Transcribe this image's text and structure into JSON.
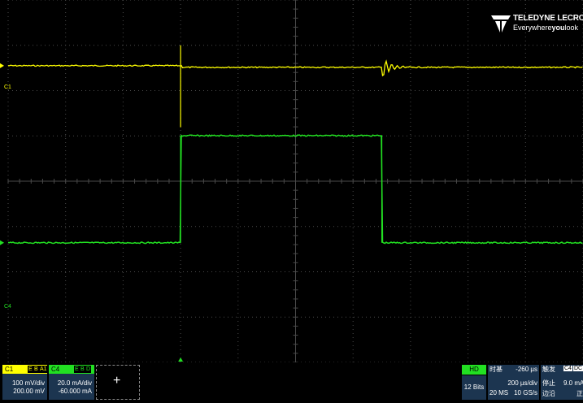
{
  "brand": {
    "name": "TELEDYNE LECROY",
    "tagline_pre": "Everywhere",
    "tagline_bold": "you",
    "tagline_post": "look"
  },
  "colors": {
    "ch1": "#ffff00",
    "ch4": "#22e022",
    "grid": "#4a4a4a",
    "panel": "#1c3550"
  },
  "trace_labels": {
    "ch1": "C1",
    "ch4": "C4"
  },
  "ch1": {
    "label": "C1",
    "badges": [
      "E",
      "B",
      "A1"
    ],
    "scale": "100 mV/div",
    "offset": "200.00 mV"
  },
  "ch4": {
    "label": "C4",
    "badges": [
      "E",
      "B",
      "D"
    ],
    "scale": "20.0 mA/div",
    "offset": "-60.000 mA"
  },
  "add_channel": {
    "symbol": "+"
  },
  "timebase": {
    "hd": "HD",
    "bits": "12 Bits",
    "title": "时基",
    "delay": "-260 µs",
    "scale": "200 µs/div",
    "samples": "20 MS",
    "rate": "10 GS/s"
  },
  "trigger": {
    "title": "触发",
    "source": "C4",
    "coupling": "DC",
    "mode": "停止",
    "level": "9.0 mA",
    "type": "边沿",
    "slope": "正"
  },
  "waveforms": {
    "ch1": {
      "baseline_div": 1.45,
      "spike_time_div": 3.0,
      "spike_depth_div": 1.82,
      "ring_time_div": 6.5
    },
    "ch4": {
      "low_div": 5.0,
      "high_div": 2.6,
      "rise_time_div": 3.0,
      "fall_time_div": 6.5
    }
  }
}
